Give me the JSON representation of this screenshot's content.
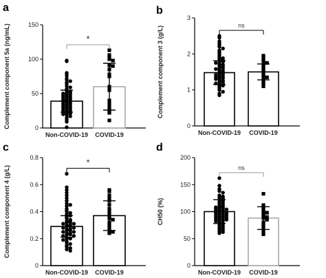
{
  "chart_data": [
    {
      "type": "bar",
      "panel": "a",
      "ylabel": "Complement component 5a (ng/mL)",
      "ylim": [
        0,
        150
      ],
      "yticks": [
        0,
        50,
        100,
        150
      ],
      "categories": [
        "Non-COVID-19",
        "COVID-19"
      ],
      "means": [
        39,
        60
      ],
      "sd": [
        16,
        34
      ],
      "bar_edge_colors": [
        "#000000",
        "#aaaaaa"
      ],
      "significance": "*",
      "points": [
        [
          98,
          97,
          80,
          79,
          76,
          72,
          70,
          68,
          66,
          64,
          61,
          59,
          57,
          55,
          53,
          52,
          51,
          50,
          49,
          48,
          47,
          46,
          45,
          44,
          43,
          42,
          41,
          40,
          39,
          38,
          37,
          36,
          35,
          34,
          33,
          32,
          31,
          30,
          29,
          28,
          27,
          26,
          25,
          24,
          23,
          22,
          21,
          20,
          19,
          17,
          15,
          12,
          9,
          1
        ],
        [
          113,
          106,
          103,
          100,
          98,
          91,
          90,
          85,
          78,
          75,
          60,
          55,
          40,
          35,
          30,
          26,
          23,
          22,
          11
        ]
      ]
    },
    {
      "type": "bar",
      "panel": "b",
      "ylabel": "Complement component 3 (g/L)",
      "ylim": [
        0,
        3
      ],
      "yticks": [
        0,
        1,
        2,
        3
      ],
      "categories": [
        "Non-COVID-19",
        "COVID-19"
      ],
      "means": [
        1.48,
        1.5
      ],
      "sd": [
        0.33,
        0.22
      ],
      "bar_edge_colors": [
        "#000000",
        "#000000"
      ],
      "significance": "ns",
      "points": [
        [
          2.5,
          2.45,
          2.35,
          2.3,
          2.25,
          2.2,
          2.15,
          2.1,
          2.05,
          2.0,
          1.95,
          1.9,
          1.88,
          1.85,
          1.82,
          1.8,
          1.78,
          1.75,
          1.72,
          1.7,
          1.68,
          1.65,
          1.62,
          1.6,
          1.58,
          1.55,
          1.53,
          1.5,
          1.48,
          1.46,
          1.44,
          1.42,
          1.4,
          1.38,
          1.36,
          1.34,
          1.32,
          1.3,
          1.28,
          1.25,
          1.22,
          1.2,
          1.18,
          1.15,
          1.12,
          1.1,
          1.05,
          1.0,
          0.95,
          0.9,
          0.85
        ],
        [
          1.95,
          1.9,
          1.85,
          1.8,
          1.75,
          1.7,
          1.65,
          1.6,
          1.55,
          1.5,
          1.45,
          1.4,
          1.35,
          1.3,
          1.25,
          1.2,
          1.15,
          1.1
        ]
      ]
    },
    {
      "type": "bar",
      "panel": "c",
      "ylabel": "Complement component 4 (g/L)",
      "ylim": [
        0,
        0.8
      ],
      "yticks": [
        0,
        0.2,
        0.4,
        0.6,
        0.8
      ],
      "categories": [
        "Non-COVID-19",
        "COVID-19"
      ],
      "means": [
        0.29,
        0.37
      ],
      "sd": [
        0.08,
        0.11
      ],
      "bar_edge_colors": [
        "#000000",
        "#000000"
      ],
      "significance": "*",
      "points": [
        [
          0.68,
          0.58,
          0.56,
          0.54,
          0.52,
          0.5,
          0.48,
          0.46,
          0.45,
          0.44,
          0.42,
          0.41,
          0.4,
          0.39,
          0.38,
          0.37,
          0.36,
          0.35,
          0.34,
          0.33,
          0.33,
          0.32,
          0.32,
          0.31,
          0.31,
          0.3,
          0.3,
          0.29,
          0.29,
          0.28,
          0.28,
          0.27,
          0.27,
          0.26,
          0.26,
          0.25,
          0.25,
          0.24,
          0.24,
          0.23,
          0.23,
          0.22,
          0.22,
          0.21,
          0.2,
          0.2,
          0.19,
          0.18,
          0.17,
          0.16,
          0.15,
          0.14,
          0.13,
          0.12,
          0.11
        ],
        [
          0.56,
          0.55,
          0.52,
          0.5,
          0.48,
          0.45,
          0.42,
          0.4,
          0.38,
          0.36,
          0.35,
          0.34,
          0.32,
          0.3,
          0.28,
          0.26,
          0.25,
          0.24
        ]
      ]
    },
    {
      "type": "bar",
      "panel": "d",
      "ylabel": "CH50 (%)",
      "ylim": [
        0,
        200
      ],
      "yticks": [
        0,
        50,
        100,
        150,
        200
      ],
      "categories": [
        "Non-COVID-19",
        "COVID-19"
      ],
      "means": [
        100,
        88
      ],
      "sd": [
        22,
        21
      ],
      "bar_edge_colors": [
        "#000000",
        "#aaaaaa"
      ],
      "significance": "ns",
      "points": [
        [
          162,
          148,
          142,
          138,
          135,
          130,
          128,
          126,
          124,
          122,
          120,
          118,
          116,
          114,
          112,
          110,
          109,
          108,
          107,
          106,
          105,
          104,
          103,
          102,
          101,
          100,
          99,
          98,
          97,
          96,
          95,
          94,
          93,
          92,
          91,
          90,
          89,
          88,
          87,
          86,
          85,
          84,
          83,
          82,
          80,
          78,
          76,
          74,
          72,
          70,
          68,
          66,
          64,
          62,
          60
        ],
        [
          133,
          112,
          108,
          105,
          102,
          100,
          98,
          95,
          92,
          90,
          88,
          85,
          80,
          76,
          72,
          68,
          62,
          58
        ]
      ]
    }
  ]
}
